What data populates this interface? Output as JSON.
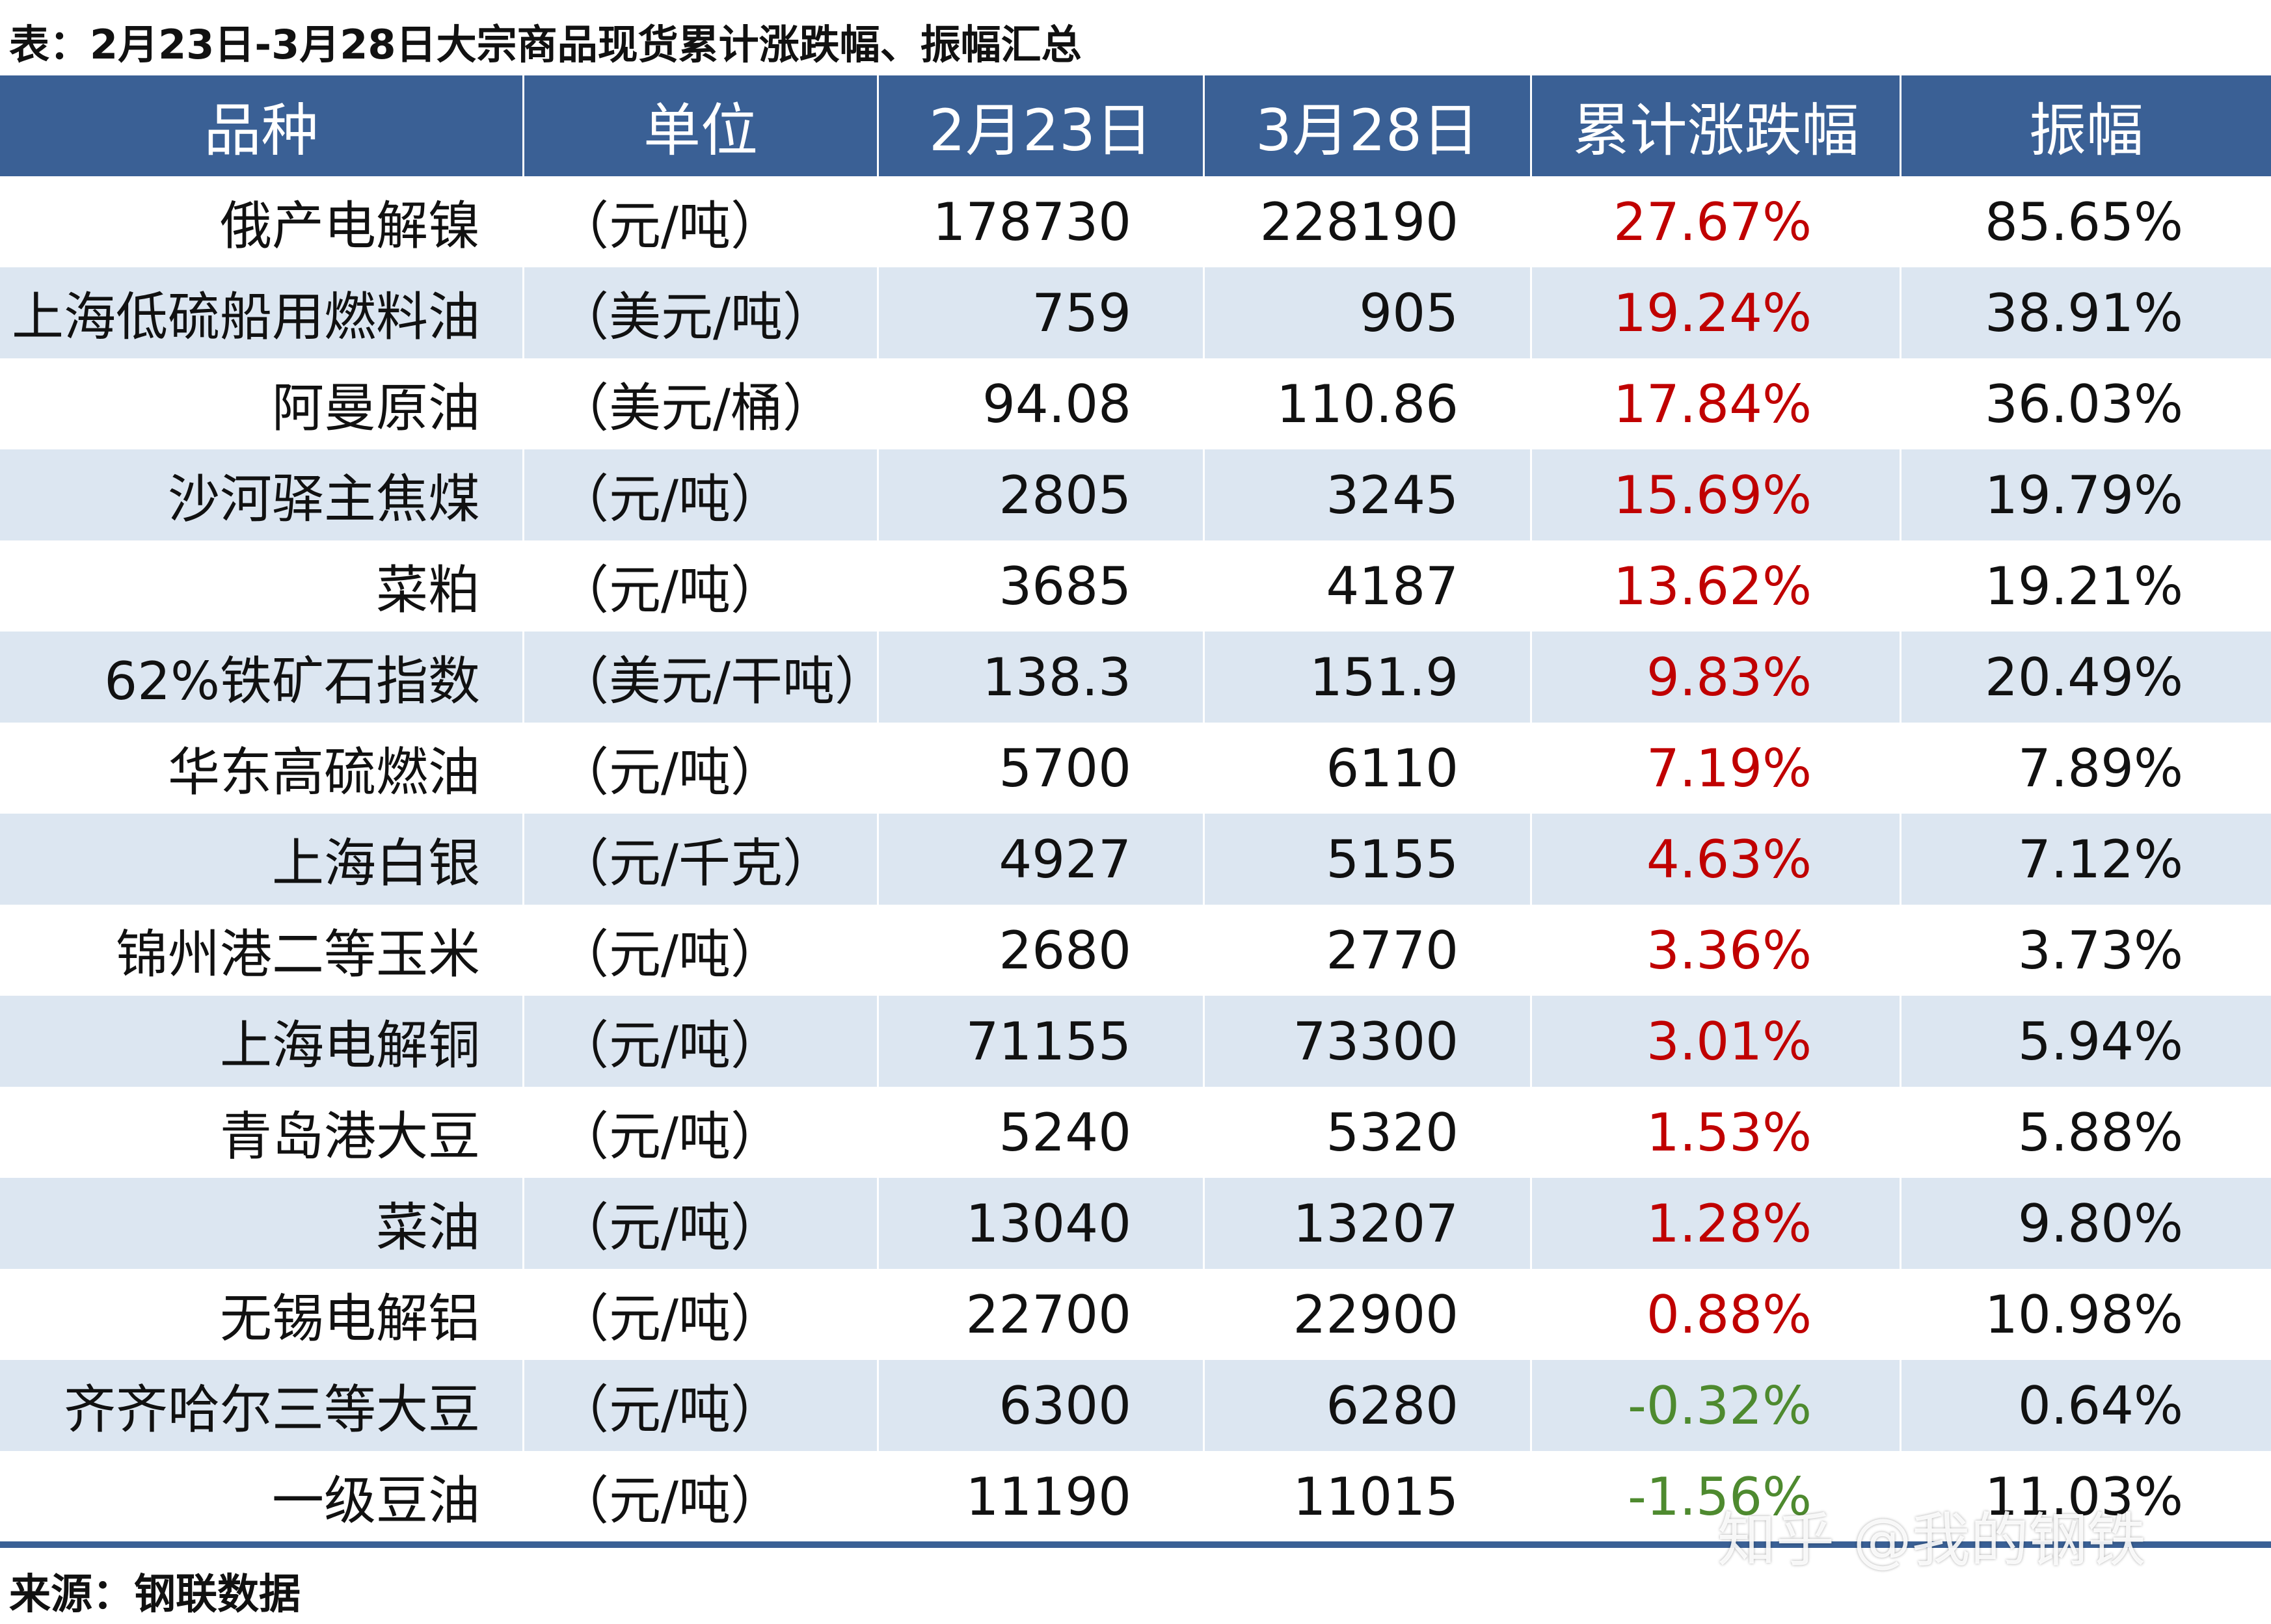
{
  "header": {
    "title": "表：2月23日-3月28日大宗商品现货累计涨跌幅、振幅汇总"
  },
  "table": {
    "columns": [
      "品种",
      "单位",
      "2月23日",
      "3月28日",
      "累计涨跌幅",
      "振幅"
    ],
    "rows": [
      [
        "俄产电解镍",
        "（元/吨）",
        "178730",
        "228190",
        "27.67%",
        "85.65%"
      ],
      [
        "上海低硫船用燃料油",
        "（美元/吨）",
        "759",
        "905",
        "19.24%",
        "38.91%"
      ],
      [
        "阿曼原油",
        "（美元/桶）",
        "94.08",
        "110.86",
        "17.84%",
        "36.03%"
      ],
      [
        "沙河驿主焦煤",
        "（元/吨）",
        "2805",
        "3245",
        "15.69%",
        "19.79%"
      ],
      [
        "菜粕",
        "（元/吨）",
        "3685",
        "4187",
        "13.62%",
        "19.21%"
      ],
      [
        "62%铁矿石指数",
        "（美元/干吨）",
        "138.3",
        "151.9",
        "9.83%",
        "20.49%"
      ],
      [
        "华东高硫燃油",
        "（元/吨）",
        "5700",
        "6110",
        "7.19%",
        "7.89%"
      ],
      [
        "上海白银",
        "（元/千克）",
        "4927",
        "5155",
        "4.63%",
        "7.12%"
      ],
      [
        "锦州港二等玉米",
        "（元/吨）",
        "2680",
        "2770",
        "3.36%",
        "3.73%"
      ],
      [
        "上海电解铜",
        "（元/吨）",
        "71155",
        "73300",
        "3.01%",
        "5.94%"
      ],
      [
        "青岛港大豆",
        "（元/吨）",
        "5240",
        "5320",
        "1.53%",
        "5.88%"
      ],
      [
        "菜油",
        "（元/吨）",
        "13040",
        "13207",
        "1.28%",
        "9.80%"
      ],
      [
        "无锡电解铝",
        "（元/吨）",
        "22700",
        "22900",
        "0.88%",
        "10.98%"
      ],
      [
        "齐齐哈尔三等大豆",
        "（元/吨）",
        "6300",
        "6280",
        "-0.32%",
        "0.64%"
      ],
      [
        "一级豆油",
        "（元/吨）",
        "11190",
        "11015",
        "-1.56%",
        "11.03%"
      ]
    ]
  },
  "footer": {
    "source": "来源：钢联数据",
    "watermark": "知乎 @我的钢铁"
  }
}
